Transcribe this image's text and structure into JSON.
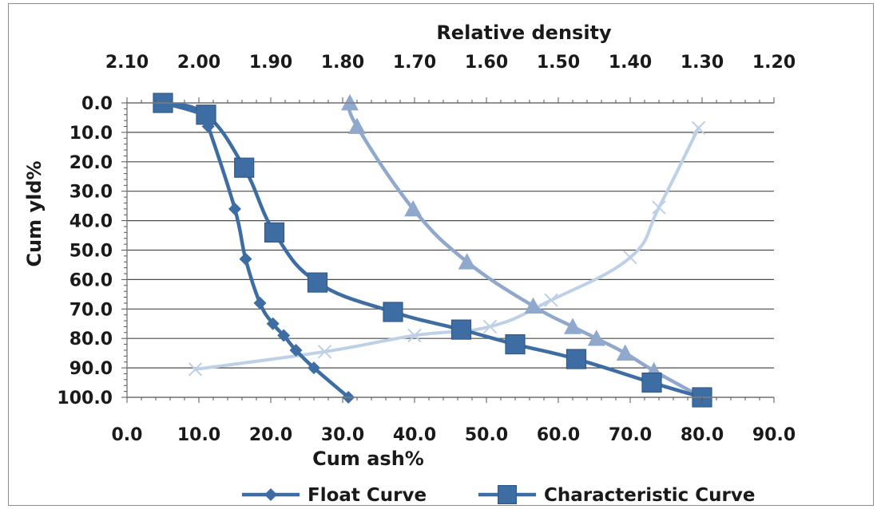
{
  "chart_data": {
    "type": "scatter",
    "xlabel": "Cum ash%",
    "ylabel": "Cum yld%",
    "x2label": "Relative density",
    "xlim": [
      0,
      90
    ],
    "ylim": [
      0,
      100
    ],
    "y_inverted": true,
    "x2lim": [
      2.1,
      1.2
    ],
    "x_ticks": [
      "0.0",
      "10.0",
      "20.0",
      "30.0",
      "40.0",
      "50.0",
      "60.0",
      "70.0",
      "80.0",
      "90.0"
    ],
    "x2_ticks": [
      "2.10",
      "2.00",
      "1.90",
      "1.80",
      "1.70",
      "1.60",
      "1.50",
      "1.40",
      "1.30",
      "1.20"
    ],
    "y_ticks": [
      "0.0",
      "10.0",
      "20.0",
      "30.0",
      "40.0",
      "50.0",
      "60.0",
      "70.0",
      "80.0",
      "90.0",
      "100.0"
    ],
    "grid": true,
    "legend_position": "bottom",
    "series": [
      {
        "name": "Float Curve",
        "color": "#3d6da3",
        "marker": "diamond",
        "x": [
          5.0,
          10.5,
          11.3,
          15.0,
          16.5,
          18.5,
          20.3,
          21.8,
          23.5,
          26.0,
          30.8
        ],
        "y": [
          0.0,
          4.0,
          8.0,
          36.0,
          53.0,
          68.0,
          75.0,
          79.0,
          84.0,
          90.0,
          100.0
        ]
      },
      {
        "name": "Characteristic Curve",
        "color": "#3d6da3",
        "marker": "square",
        "x": [
          5.0,
          11.0,
          16.3,
          20.5,
          26.5,
          37.0,
          46.5,
          54.0,
          62.5,
          73.0,
          80.0
        ],
        "y": [
          0.0,
          4.0,
          22.0,
          44.0,
          61.0,
          71.0,
          77.0,
          82.0,
          87.0,
          95.0,
          100.0
        ]
      },
      {
        "name": "",
        "color": "#8fa8cc",
        "marker": "triangle",
        "x": [
          31.0,
          32.0,
          39.8,
          47.3,
          56.5,
          62.0,
          65.3,
          69.3,
          73.3,
          80.0
        ],
        "y": [
          0.0,
          8.0,
          36.0,
          54.0,
          69.0,
          76.0,
          80.0,
          85.0,
          91.0,
          100.0
        ]
      },
      {
        "name": "",
        "color": "#bdd0e8",
        "marker": "x",
        "x": [
          9.5,
          27.5,
          40.0,
          50.5,
          59.0,
          70.0,
          74.0,
          79.5
        ],
        "y": [
          90.5,
          84.5,
          79.0,
          76.0,
          67.0,
          52.5,
          35.5,
          8.5
        ]
      }
    ]
  }
}
